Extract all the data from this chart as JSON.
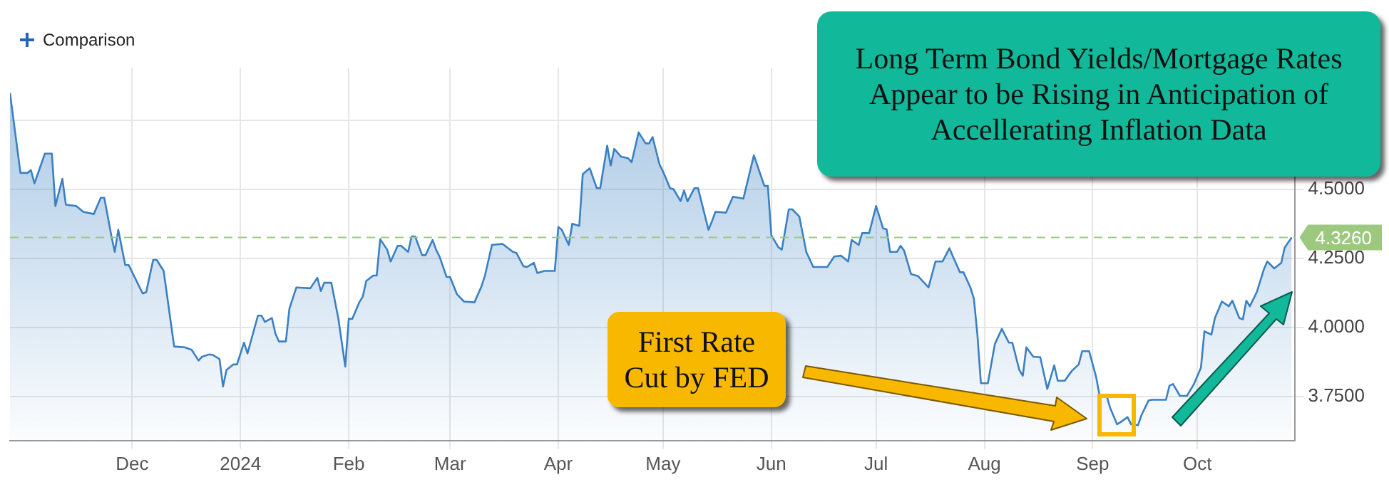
{
  "chart_data": {
    "type": "area",
    "x": [
      "2023-10-27",
      "2023-10-30",
      "2023-11-01",
      "2023-11-02",
      "2023-11-03",
      "2023-11-06",
      "2023-11-08",
      "2023-11-09",
      "2023-11-11",
      "2023-11-12",
      "2023-11-15",
      "2023-11-17",
      "2023-11-20",
      "2023-11-22",
      "2023-11-23",
      "2023-11-25",
      "2023-11-26",
      "2023-11-27",
      "2023-11-29",
      "2023-11-30",
      "2023-12-04",
      "2023-12-05",
      "2023-12-07",
      "2023-12-08",
      "2023-12-10",
      "2023-12-13",
      "2023-12-16",
      "2023-12-18",
      "2023-12-20",
      "2023-12-21",
      "2023-12-23",
      "2023-12-24",
      "2023-12-26",
      "2023-12-27",
      "2023-12-28",
      "2023-12-30",
      "2023-12-31",
      "2024-01-02",
      "2024-01-03",
      "2024-01-06",
      "2024-01-07",
      "2024-01-08",
      "2024-01-10",
      "2024-01-11",
      "2024-01-12",
      "2024-01-14",
      "2024-01-15",
      "2024-01-17",
      "2024-01-21",
      "2024-01-23",
      "2024-01-24",
      "2024-01-25",
      "2024-01-27",
      "2024-01-29",
      "2024-01-31",
      "2024-02-01",
      "2024-02-02",
      "2024-02-04",
      "2024-02-05",
      "2024-02-06",
      "2024-02-08",
      "2024-02-09",
      "2024-02-10",
      "2024-02-12",
      "2024-02-13",
      "2024-02-15",
      "2024-02-16",
      "2024-02-18",
      "2024-02-19",
      "2024-02-20",
      "2024-02-22",
      "2024-02-23",
      "2024-02-25",
      "2024-02-26",
      "2024-02-27",
      "2024-02-29",
      "2024-03-01",
      "2024-03-03",
      "2024-03-05",
      "2024-03-08",
      "2024-03-10",
      "2024-03-11",
      "2024-03-13",
      "2024-03-16",
      "2024-03-19",
      "2024-03-20",
      "2024-03-22",
      "2024-03-23",
      "2024-03-25",
      "2024-03-26",
      "2024-03-28",
      "2024-03-31",
      "2024-04-01",
      "2024-04-02",
      "2024-04-04",
      "2024-04-05",
      "2024-04-07",
      "2024-04-08",
      "2024-04-10",
      "2024-04-12",
      "2024-04-13",
      "2024-04-15",
      "2024-04-16",
      "2024-04-17",
      "2024-04-19",
      "2024-04-21",
      "2024-04-22",
      "2024-04-24",
      "2024-04-26",
      "2024-04-27",
      "2024-04-28",
      "2024-04-30",
      "2024-05-01",
      "2024-05-03",
      "2024-05-04",
      "2024-05-06",
      "2024-05-07",
      "2024-05-08",
      "2024-05-10",
      "2024-05-11",
      "2024-05-14",
      "2024-05-15",
      "2024-05-16",
      "2024-05-19",
      "2024-05-21",
      "2024-05-24",
      "2024-05-27",
      "2024-05-30",
      "2024-05-31",
      "2024-06-01",
      "2024-06-03",
      "2024-06-04",
      "2024-06-06",
      "2024-06-07",
      "2024-06-09",
      "2024-06-11",
      "2024-06-13",
      "2024-06-17",
      "2024-06-19",
      "2024-06-21",
      "2024-06-23",
      "2024-06-24",
      "2024-06-26",
      "2024-06-27",
      "2024-06-29",
      "2024-07-01",
      "2024-07-03",
      "2024-07-04",
      "2024-07-05",
      "2024-07-07",
      "2024-07-08",
      "2024-07-09",
      "2024-07-11",
      "2024-07-13",
      "2024-07-16",
      "2024-07-18",
      "2024-07-20",
      "2024-07-22",
      "2024-07-23",
      "2024-07-25",
      "2024-07-26",
      "2024-07-28",
      "2024-07-29",
      "2024-07-30",
      "2024-07-31",
      "2024-08-02",
      "2024-08-04",
      "2024-08-06",
      "2024-08-08",
      "2024-08-09",
      "2024-08-11",
      "2024-08-12",
      "2024-08-13",
      "2024-08-15",
      "2024-08-17",
      "2024-08-19",
      "2024-08-21",
      "2024-08-22",
      "2024-08-24",
      "2024-08-26",
      "2024-08-28",
      "2024-08-29",
      "2024-08-31",
      "2024-09-02",
      "2024-09-03",
      "2024-09-05",
      "2024-09-06",
      "2024-09-08",
      "2024-09-09",
      "2024-09-11",
      "2024-09-12",
      "2024-09-14",
      "2024-09-15",
      "2024-09-17",
      "2024-09-18",
      "2024-09-22",
      "2024-09-23",
      "2024-09-24",
      "2024-09-26",
      "2024-09-28",
      "2024-09-30",
      "2024-10-02",
      "2024-10-03",
      "2024-10-05",
      "2024-10-06",
      "2024-10-08",
      "2024-10-10",
      "2024-10-11",
      "2024-10-13",
      "2024-10-14",
      "2024-10-15",
      "2024-10-16",
      "2024-10-18",
      "2024-10-20",
      "2024-10-21",
      "2024-10-23",
      "2024-10-25",
      "2024-10-26",
      "2024-10-28"
    ],
    "series": [
      {
        "color": "#3a80c3",
        "values": [
          4.85,
          4.56,
          4.56,
          4.57,
          4.522,
          4.63,
          4.63,
          4.44,
          4.539,
          4.445,
          4.44,
          4.419,
          4.411,
          4.47,
          4.47,
          4.334,
          4.274,
          4.354,
          4.226,
          4.226,
          4.123,
          4.128,
          4.245,
          4.245,
          4.205,
          3.931,
          3.928,
          3.919,
          3.88,
          3.894,
          3.902,
          3.901,
          3.885,
          3.786,
          3.846,
          3.866,
          3.866,
          3.945,
          3.906,
          4.043,
          4.043,
          4.02,
          4.034,
          3.978,
          3.949,
          3.949,
          4.068,
          4.145,
          4.142,
          4.18,
          4.132,
          4.162,
          4.162,
          4.034,
          3.858,
          4.031,
          4.031,
          4.091,
          4.111,
          4.168,
          4.188,
          4.188,
          4.32,
          4.282,
          4.239,
          4.296,
          4.296,
          4.274,
          4.33,
          4.33,
          4.262,
          4.262,
          4.317,
          4.282,
          4.257,
          4.183,
          4.183,
          4.12,
          4.094,
          4.091,
          4.149,
          4.188,
          4.299,
          4.303,
          4.274,
          4.27,
          4.222,
          4.219,
          4.234,
          4.197,
          4.205,
          4.205,
          4.364,
          4.354,
          4.299,
          4.376,
          4.368,
          4.556,
          4.577,
          4.505,
          4.505,
          4.659,
          4.587,
          4.647,
          4.619,
          4.613,
          4.599,
          4.707,
          4.667,
          4.667,
          4.69,
          4.59,
          4.565,
          4.505,
          4.501,
          4.458,
          4.496,
          4.457,
          4.505,
          4.505,
          4.354,
          4.385,
          4.419,
          4.416,
          4.474,
          4.467,
          4.624,
          4.513,
          4.513,
          4.334,
          4.291,
          4.282,
          4.428,
          4.428,
          4.402,
          4.274,
          4.219,
          4.219,
          4.257,
          4.26,
          4.239,
          4.317,
          4.299,
          4.342,
          4.342,
          4.44,
          4.359,
          4.356,
          4.274,
          4.274,
          4.296,
          4.279,
          4.193,
          4.186,
          4.145,
          4.239,
          4.239,
          4.287,
          4.257,
          4.2,
          4.2,
          4.145,
          4.103,
          3.974,
          3.798,
          3.798,
          3.94,
          3.995,
          3.945,
          3.945,
          3.846,
          3.825,
          3.928,
          3.894,
          3.892,
          3.777,
          3.863,
          3.807,
          3.807,
          3.842,
          3.866,
          3.914,
          3.914,
          3.82,
          3.752,
          3.752,
          3.709,
          3.649,
          3.657,
          3.675,
          3.649,
          3.646,
          3.683,
          3.735,
          3.738,
          3.738,
          3.789,
          3.795,
          3.752,
          3.752,
          3.795,
          3.854,
          3.986,
          3.974,
          4.034,
          4.094,
          4.077,
          4.097,
          4.034,
          4.029,
          4.097,
          4.077,
          4.128,
          4.21,
          4.239,
          4.214,
          4.234,
          4.29,
          4.326
        ]
      }
    ],
    "xlim": [
      "2023-10-27",
      "2024-10-29"
    ],
    "xticks": [
      {
        "value": "2023-12-01",
        "label": "Dec"
      },
      {
        "value": "2024-01-01",
        "label": "2024"
      },
      {
        "value": "2024-02-01",
        "label": "Feb"
      },
      {
        "value": "2024-03-01",
        "label": "Mar"
      },
      {
        "value": "2024-04-01",
        "label": "Apr"
      },
      {
        "value": "2024-05-01",
        "label": "May"
      },
      {
        "value": "2024-06-01",
        "label": "Jun"
      },
      {
        "value": "2024-07-01",
        "label": "Jul"
      },
      {
        "value": "2024-08-01",
        "label": "Aug"
      },
      {
        "value": "2024-09-01",
        "label": "Sep"
      },
      {
        "value": "2024-10-01",
        "label": "Oct"
      }
    ],
    "ylim": [
      3.59,
      4.94
    ],
    "yticks": [
      {
        "value": 3.75,
        "label": "3.7500"
      },
      {
        "value": 4.0,
        "label": "4.0000"
      },
      {
        "value": 4.25,
        "label": "4.2500"
      },
      {
        "value": 4.5,
        "label": "4.5000"
      },
      {
        "value": 4.75,
        "label": null
      }
    ],
    "grid": true,
    "ref_lines": [
      {
        "axis": "y",
        "value": 4.326,
        "label": "4.3260",
        "color": "#9cc97f",
        "line_style": "dashed"
      }
    ],
    "annotations": [
      "Comparison",
      "Long Term Bond Yields/Mortgage Rates Appear to be Rising in Anticipation of Accellerating Inflation Data",
      "First Rate Cut by FED"
    ]
  }
}
